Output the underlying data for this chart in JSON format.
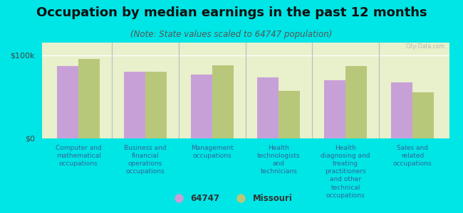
{
  "title": "Occupation by median earnings in the past 12 months",
  "subtitle": "(Note: State values scaled to 64747 population)",
  "background_color": "#00e5e5",
  "plot_bg_color": "#e8f0cc",
  "categories": [
    "Computer and\nmathematical\noccupations",
    "Business and\nfinancial\noperations\noccupations",
    "Management\noccupations",
    "Health\ntechnologists\nand\ntechnicians",
    "Health\ndiagnosing and\ntreating\npractitioners\nand other\ntechnical\noccupations",
    "Sales and\nrelated\noccupations"
  ],
  "values_64747": [
    87000,
    80000,
    77000,
    73000,
    70000,
    67000
  ],
  "values_missouri": [
    95000,
    80000,
    88000,
    57000,
    87000,
    55000
  ],
  "color_64747": "#c8a0d8",
  "color_missouri": "#b8c87a",
  "ylim": [
    0,
    115000
  ],
  "ytick_labels": [
    "$0",
    "$100k"
  ],
  "ytick_vals": [
    0,
    100000
  ],
  "legend_label_64747": "64747",
  "legend_label_missouri": "Missouri",
  "title_fontsize": 13,
  "subtitle_fontsize": 8.5,
  "axis_label_fontsize": 6.5,
  "legend_fontsize": 8.5,
  "bar_width": 0.32
}
